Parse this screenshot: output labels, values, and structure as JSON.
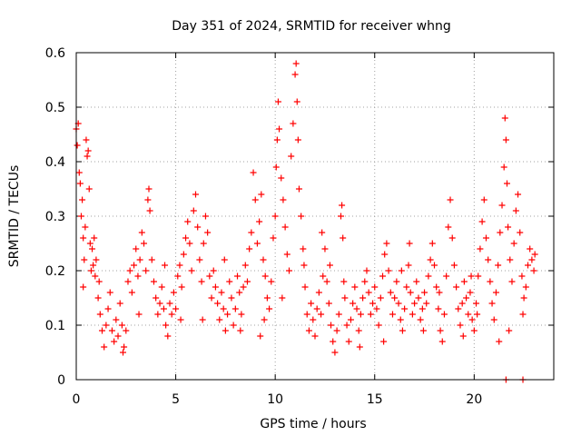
{
  "chart_data": {
    "type": "scatter",
    "title": "Day 351 of 2024, SRMTID for receiver whng",
    "xlabel": "GPS time / hours",
    "ylabel": "SRMTID / TECUs",
    "xlim": [
      0,
      24
    ],
    "ylim": [
      0,
      0.6
    ],
    "x_ticks": [
      0,
      5,
      10,
      15,
      20
    ],
    "y_ticks": [
      0,
      0.1,
      0.2,
      0.3,
      0.4,
      0.5,
      0.6
    ],
    "x_tick_labels": [
      "0",
      "5",
      "10",
      "15",
      "20"
    ],
    "y_tick_labels": [
      "0",
      "0.1",
      "0.2",
      "0.3",
      "0.4",
      "0.5",
      "0.6"
    ],
    "grid": true,
    "marker": "plus",
    "series": [
      {
        "name": "SRMTID",
        "color": "#ff0000",
        "points": [
          [
            0.0,
            0.46
          ],
          [
            0.05,
            0.43
          ],
          [
            0.1,
            0.47
          ],
          [
            0.15,
            0.38
          ],
          [
            0.2,
            0.36
          ],
          [
            0.25,
            0.3
          ],
          [
            0.3,
            0.33
          ],
          [
            0.35,
            0.26
          ],
          [
            0.4,
            0.22
          ],
          [
            0.45,
            0.28
          ],
          [
            0.5,
            0.44
          ],
          [
            0.55,
            0.41
          ],
          [
            0.6,
            0.42
          ],
          [
            0.65,
            0.35
          ],
          [
            0.7,
            0.25
          ],
          [
            0.75,
            0.2
          ],
          [
            0.8,
            0.24
          ],
          [
            0.85,
            0.21
          ],
          [
            0.9,
            0.26
          ],
          [
            0.95,
            0.19
          ],
          [
            1.0,
            0.22
          ],
          [
            1.1,
            0.15
          ],
          [
            1.2,
            0.12
          ],
          [
            1.3,
            0.09
          ],
          [
            1.4,
            0.06
          ],
          [
            1.5,
            0.1
          ],
          [
            1.6,
            0.13
          ],
          [
            1.7,
            0.16
          ],
          [
            1.8,
            0.09
          ],
          [
            1.9,
            0.07
          ],
          [
            2.0,
            0.11
          ],
          [
            2.1,
            0.08
          ],
          [
            2.2,
            0.14
          ],
          [
            2.3,
            0.1
          ],
          [
            2.4,
            0.06
          ],
          [
            2.5,
            0.09
          ],
          [
            2.6,
            0.18
          ],
          [
            2.7,
            0.2
          ],
          [
            2.8,
            0.16
          ],
          [
            2.9,
            0.21
          ],
          [
            3.0,
            0.24
          ],
          [
            3.1,
            0.19
          ],
          [
            3.2,
            0.22
          ],
          [
            3.3,
            0.27
          ],
          [
            3.4,
            0.25
          ],
          [
            3.5,
            0.2
          ],
          [
            3.6,
            0.33
          ],
          [
            3.65,
            0.35
          ],
          [
            3.7,
            0.31
          ],
          [
            3.8,
            0.22
          ],
          [
            3.9,
            0.18
          ],
          [
            4.0,
            0.15
          ],
          [
            4.1,
            0.12
          ],
          [
            4.2,
            0.14
          ],
          [
            4.3,
            0.17
          ],
          [
            4.4,
            0.13
          ],
          [
            4.5,
            0.1
          ],
          [
            4.6,
            0.08
          ],
          [
            4.7,
            0.14
          ],
          [
            4.8,
            0.12
          ],
          [
            4.9,
            0.16
          ],
          [
            5.0,
            0.13
          ],
          [
            5.1,
            0.19
          ],
          [
            5.2,
            0.21
          ],
          [
            5.3,
            0.17
          ],
          [
            5.4,
            0.23
          ],
          [
            5.5,
            0.26
          ],
          [
            5.6,
            0.29
          ],
          [
            5.7,
            0.25
          ],
          [
            5.8,
            0.2
          ],
          [
            5.9,
            0.31
          ],
          [
            6.0,
            0.34
          ],
          [
            6.1,
            0.28
          ],
          [
            6.2,
            0.22
          ],
          [
            6.3,
            0.18
          ],
          [
            6.4,
            0.25
          ],
          [
            6.5,
            0.3
          ],
          [
            6.6,
            0.27
          ],
          [
            6.7,
            0.19
          ],
          [
            6.8,
            0.15
          ],
          [
            6.9,
            0.2
          ],
          [
            7.0,
            0.17
          ],
          [
            7.1,
            0.14
          ],
          [
            7.2,
            0.11
          ],
          [
            7.3,
            0.16
          ],
          [
            7.4,
            0.13
          ],
          [
            7.5,
            0.09
          ],
          [
            7.6,
            0.12
          ],
          [
            7.7,
            0.18
          ],
          [
            7.8,
            0.15
          ],
          [
            7.9,
            0.1
          ],
          [
            8.0,
            0.13
          ],
          [
            8.1,
            0.19
          ],
          [
            8.2,
            0.16
          ],
          [
            8.3,
            0.12
          ],
          [
            8.4,
            0.17
          ],
          [
            8.5,
            0.21
          ],
          [
            8.6,
            0.18
          ],
          [
            8.7,
            0.24
          ],
          [
            8.8,
            0.27
          ],
          [
            8.9,
            0.38
          ],
          [
            9.0,
            0.33
          ],
          [
            9.1,
            0.25
          ],
          [
            9.2,
            0.29
          ],
          [
            9.3,
            0.34
          ],
          [
            9.4,
            0.22
          ],
          [
            9.5,
            0.19
          ],
          [
            9.6,
            0.15
          ],
          [
            9.7,
            0.13
          ],
          [
            9.8,
            0.18
          ],
          [
            9.9,
            0.26
          ],
          [
            10.0,
            0.3
          ],
          [
            10.05,
            0.39
          ],
          [
            10.1,
            0.44
          ],
          [
            10.15,
            0.51
          ],
          [
            10.2,
            0.46
          ],
          [
            10.3,
            0.37
          ],
          [
            10.4,
            0.33
          ],
          [
            10.5,
            0.28
          ],
          [
            10.6,
            0.23
          ],
          [
            10.7,
            0.2
          ],
          [
            10.8,
            0.41
          ],
          [
            10.9,
            0.47
          ],
          [
            11.0,
            0.56
          ],
          [
            11.05,
            0.58
          ],
          [
            11.1,
            0.51
          ],
          [
            11.15,
            0.44
          ],
          [
            11.2,
            0.35
          ],
          [
            11.3,
            0.3
          ],
          [
            11.4,
            0.24
          ],
          [
            11.5,
            0.17
          ],
          [
            11.6,
            0.12
          ],
          [
            11.7,
            0.09
          ],
          [
            11.8,
            0.14
          ],
          [
            11.9,
            0.11
          ],
          [
            12.0,
            0.08
          ],
          [
            12.1,
            0.13
          ],
          [
            12.2,
            0.16
          ],
          [
            12.3,
            0.12
          ],
          [
            12.4,
            0.19
          ],
          [
            12.5,
            0.24
          ],
          [
            12.6,
            0.18
          ],
          [
            12.7,
            0.14
          ],
          [
            12.8,
            0.1
          ],
          [
            12.9,
            0.07
          ],
          [
            13.0,
            0.05
          ],
          [
            13.1,
            0.09
          ],
          [
            13.2,
            0.12
          ],
          [
            13.3,
            0.3
          ],
          [
            13.35,
            0.32
          ],
          [
            13.4,
            0.26
          ],
          [
            13.5,
            0.15
          ],
          [
            13.6,
            0.1
          ],
          [
            13.7,
            0.07
          ],
          [
            13.8,
            0.11
          ],
          [
            13.9,
            0.14
          ],
          [
            14.0,
            0.17
          ],
          [
            14.1,
            0.13
          ],
          [
            14.2,
            0.09
          ],
          [
            14.3,
            0.12
          ],
          [
            14.4,
            0.15
          ],
          [
            14.5,
            0.18
          ],
          [
            14.6,
            0.2
          ],
          [
            14.7,
            0.16
          ],
          [
            14.8,
            0.12
          ],
          [
            14.9,
            0.14
          ],
          [
            15.0,
            0.17
          ],
          [
            15.1,
            0.13
          ],
          [
            15.2,
            0.1
          ],
          [
            15.3,
            0.15
          ],
          [
            15.4,
            0.19
          ],
          [
            15.5,
            0.23
          ],
          [
            15.6,
            0.25
          ],
          [
            15.7,
            0.2
          ],
          [
            15.8,
            0.16
          ],
          [
            15.9,
            0.12
          ],
          [
            16.0,
            0.15
          ],
          [
            16.1,
            0.18
          ],
          [
            16.2,
            0.14
          ],
          [
            16.3,
            0.11
          ],
          [
            16.4,
            0.09
          ],
          [
            16.5,
            0.13
          ],
          [
            16.6,
            0.17
          ],
          [
            16.7,
            0.21
          ],
          [
            16.8,
            0.16
          ],
          [
            16.9,
            0.12
          ],
          [
            17.0,
            0.14
          ],
          [
            17.1,
            0.18
          ],
          [
            17.2,
            0.15
          ],
          [
            17.3,
            0.11
          ],
          [
            17.4,
            0.13
          ],
          [
            17.5,
            0.16
          ],
          [
            17.6,
            0.14
          ],
          [
            17.7,
            0.19
          ],
          [
            17.8,
            0.22
          ],
          [
            17.9,
            0.25
          ],
          [
            18.0,
            0.21
          ],
          [
            18.1,
            0.17
          ],
          [
            18.2,
            0.13
          ],
          [
            18.3,
            0.09
          ],
          [
            18.4,
            0.07
          ],
          [
            18.5,
            0.12
          ],
          [
            18.6,
            0.19
          ],
          [
            18.7,
            0.28
          ],
          [
            18.8,
            0.33
          ],
          [
            18.9,
            0.26
          ],
          [
            19.0,
            0.21
          ],
          [
            19.1,
            0.17
          ],
          [
            19.2,
            0.13
          ],
          [
            19.3,
            0.1
          ],
          [
            19.4,
            0.14
          ],
          [
            19.5,
            0.18
          ],
          [
            19.6,
            0.15
          ],
          [
            19.7,
            0.12
          ],
          [
            19.8,
            0.16
          ],
          [
            19.9,
            0.11
          ],
          [
            20.0,
            0.09
          ],
          [
            20.1,
            0.14
          ],
          [
            20.2,
            0.19
          ],
          [
            20.3,
            0.24
          ],
          [
            20.4,
            0.29
          ],
          [
            20.5,
            0.33
          ],
          [
            20.6,
            0.26
          ],
          [
            20.7,
            0.22
          ],
          [
            20.8,
            0.18
          ],
          [
            20.9,
            0.14
          ],
          [
            21.0,
            0.11
          ],
          [
            21.1,
            0.16
          ],
          [
            21.2,
            0.21
          ],
          [
            21.3,
            0.27
          ],
          [
            21.4,
            0.32
          ],
          [
            21.5,
            0.39
          ],
          [
            21.55,
            0.48
          ],
          [
            21.6,
            0.44
          ],
          [
            21.65,
            0.36
          ],
          [
            21.7,
            0.28
          ],
          [
            21.8,
            0.22
          ],
          [
            21.9,
            0.18
          ],
          [
            22.0,
            0.25
          ],
          [
            22.1,
            0.31
          ],
          [
            22.2,
            0.34
          ],
          [
            22.3,
            0.27
          ],
          [
            22.4,
            0.19
          ],
          [
            22.5,
            0.15
          ],
          [
            22.6,
            0.17
          ],
          [
            22.7,
            0.21
          ],
          [
            22.8,
            0.24
          ],
          [
            22.9,
            0.22
          ],
          [
            23.0,
            0.2
          ],
          [
            23.05,
            0.23
          ],
          [
            1.15,
            0.18
          ],
          [
            2.35,
            0.05
          ],
          [
            3.15,
            0.12
          ],
          [
            4.45,
            0.21
          ],
          [
            6.35,
            0.11
          ],
          [
            7.45,
            0.22
          ],
          [
            8.25,
            0.09
          ],
          [
            9.45,
            0.11
          ],
          [
            10.35,
            0.15
          ],
          [
            11.45,
            0.21
          ],
          [
            12.35,
            0.27
          ],
          [
            13.45,
            0.18
          ],
          [
            14.25,
            0.06
          ],
          [
            15.45,
            0.07
          ],
          [
            16.35,
            0.2
          ],
          [
            17.45,
            0.09
          ],
          [
            18.25,
            0.16
          ],
          [
            19.45,
            0.08
          ],
          [
            20.15,
            0.12
          ],
          [
            21.25,
            0.07
          ],
          [
            22.45,
            0.12
          ],
          [
            0.35,
            0.17
          ],
          [
            5.25,
            0.11
          ],
          [
            9.25,
            0.08
          ],
          [
            12.75,
            0.21
          ],
          [
            16.75,
            0.25
          ],
          [
            19.85,
            0.19
          ],
          [
            21.75,
            0.09
          ],
          [
            21.6,
            0.0
          ],
          [
            22.45,
            0.0
          ]
        ]
      }
    ]
  }
}
